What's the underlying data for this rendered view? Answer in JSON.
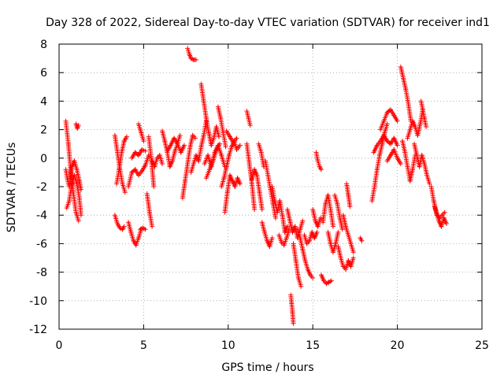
{
  "chart_data": {
    "type": "scatter",
    "title": "Day 328 of 2022, Sidereal Day-to-day VTEC variation (SDTVAR) for receiver ind1",
    "xlabel": "GPS time / hours",
    "ylabel": "SDTVAR / TECUs",
    "xlim": [
      0,
      25
    ],
    "ylim": [
      -12,
      8
    ],
    "xticks": [
      0,
      5,
      10,
      15,
      20,
      25
    ],
    "yticks": [
      -12,
      -10,
      -8,
      -6,
      -4,
      -2,
      0,
      2,
      4,
      6,
      8
    ],
    "xtick_labels": [
      "0",
      "5",
      "10",
      "15",
      "20",
      "25"
    ],
    "ytick_labels": [
      "-12",
      "-10",
      "-8",
      "-6",
      "-4",
      "-2",
      "0",
      "2",
      "4",
      "6",
      "8"
    ],
    "grid": true,
    "marker": "+",
    "marker_color": "#ff0000",
    "series": [
      {
        "name": "SDTVAR",
        "color": "#ff0000",
        "segments": [
          {
            "x": [
              0.4,
              0.55,
              0.7,
              0.85,
              1.0,
              1.15
            ],
            "y": [
              2.6,
              1.0,
              -1.0,
              -2.5,
              -3.8,
              -4.4
            ]
          },
          {
            "x": [
              0.45,
              0.6,
              0.75,
              0.9,
              1.05,
              1.2,
              1.3
            ],
            "y": [
              -3.5,
              -3.0,
              -1.8,
              -1.2,
              -1.8,
              -2.8,
              -4.0
            ]
          },
          {
            "x": [
              0.4,
              0.5,
              0.6,
              0.75,
              0.9,
              1.05,
              1.2,
              1.3
            ],
            "y": [
              -0.8,
              -1.5,
              -2.0,
              -0.6,
              -0.2,
              -0.8,
              -1.6,
              -2.2
            ]
          },
          {
            "x": [
              1.0,
              1.08,
              1.15
            ],
            "y": [
              2.4,
              2.1,
              2.3
            ]
          },
          {
            "x": [
              3.3,
              3.45,
              3.6,
              3.75,
              3.9
            ],
            "y": [
              1.6,
              0.4,
              -0.8,
              -1.8,
              -2.4
            ]
          },
          {
            "x": [
              3.3,
              3.45,
              3.6,
              3.75,
              3.85
            ],
            "y": [
              -4.0,
              -4.6,
              -4.9,
              -5.0,
              -4.8
            ]
          },
          {
            "x": [
              3.4,
              3.55,
              3.7,
              3.85,
              4.0
            ],
            "y": [
              -1.8,
              -0.8,
              0.4,
              1.2,
              1.5
            ]
          },
          {
            "x": [
              4.1,
              4.25,
              4.4,
              4.55,
              4.7,
              4.85
            ],
            "y": [
              -4.5,
              -5.2,
              -5.8,
              -6.1,
              -5.6,
              -5.0
            ]
          },
          {
            "x": [
              4.8,
              4.95,
              5.1
            ],
            "y": [
              -5.0,
              -4.9,
              -5.0
            ]
          },
          {
            "x": [
              4.1,
              4.3,
              4.5,
              4.7,
              4.9,
              5.1,
              5.3
            ],
            "y": [
              -2.0,
              -1.0,
              -0.8,
              -1.2,
              -0.9,
              -0.5,
              0.2
            ]
          },
          {
            "x": [
              4.3,
              4.5,
              4.7,
              4.9,
              5.1
            ],
            "y": [
              0.0,
              0.4,
              0.2,
              0.6,
              0.5
            ]
          },
          {
            "x": [
              4.7,
              4.85,
              5.0
            ],
            "y": [
              2.4,
              1.8,
              1.2
            ]
          },
          {
            "x": [
              5.2,
              5.35,
              5.5
            ],
            "y": [
              -2.5,
              -3.8,
              -4.8
            ]
          },
          {
            "x": [
              5.3,
              5.45,
              5.6
            ],
            "y": [
              1.5,
              0.0,
              -2.0
            ]
          },
          {
            "x": [
              5.5,
              5.65,
              5.8,
              5.95,
              6.1
            ],
            "y": [
              -0.2,
              -0.6,
              0.0,
              0.2,
              -0.4
            ]
          },
          {
            "x": [
              6.1,
              6.25,
              6.4,
              6.55,
              6.7,
              6.85,
              7.0,
              7.15
            ],
            "y": [
              1.9,
              1.2,
              0.4,
              -0.6,
              -0.2,
              0.5,
              1.0,
              1.6
            ]
          },
          {
            "x": [
              6.4,
              6.6,
              6.8,
              7.0,
              7.2,
              7.4
            ],
            "y": [
              0.5,
              0.9,
              1.4,
              1.0,
              0.4,
              0.9
            ]
          },
          {
            "x": [
              7.3,
              7.45,
              7.6,
              7.75,
              7.9,
              8.05
            ],
            "y": [
              -2.8,
              -1.6,
              -0.4,
              0.8,
              1.6,
              1.4
            ]
          },
          {
            "x": [
              7.6,
              7.7,
              7.8,
              7.95,
              8.1
            ],
            "y": [
              7.7,
              7.3,
              7.0,
              6.9,
              6.9
            ]
          },
          {
            "x": [
              7.8,
              7.95,
              8.1,
              8.25,
              8.4,
              8.55,
              8.7
            ],
            "y": [
              -1.0,
              -0.4,
              0.2,
              -0.2,
              0.8,
              1.6,
              2.6
            ]
          },
          {
            "x": [
              8.4,
              8.55,
              8.7,
              8.85,
              9.0,
              9.15,
              9.3,
              9.45
            ],
            "y": [
              5.2,
              4.0,
              2.8,
              1.8,
              0.9,
              1.4,
              2.2,
              1.5
            ]
          },
          {
            "x": [
              8.6,
              8.8,
              9.0,
              9.2,
              9.4,
              9.6,
              9.8
            ],
            "y": [
              -0.4,
              0.2,
              -0.6,
              0.4,
              0.9,
              0.2,
              -0.6
            ]
          },
          {
            "x": [
              8.7,
              8.9,
              9.1,
              9.3,
              9.5
            ],
            "y": [
              -1.4,
              -0.8,
              -0.2,
              0.6,
              1.0
            ]
          },
          {
            "x": [
              9.4,
              9.55,
              9.7,
              9.85
            ],
            "y": [
              3.6,
              2.8,
              1.8,
              0.8
            ]
          },
          {
            "x": [
              9.6,
              9.75,
              9.9,
              10.05,
              10.2,
              10.35,
              10.5,
              10.7
            ],
            "y": [
              -2.0,
              -1.4,
              -0.6,
              0.2,
              0.8,
              1.2,
              0.6,
              0.9
            ]
          },
          {
            "x": [
              9.8,
              9.95,
              10.1,
              10.25,
              10.4,
              10.55,
              10.7
            ],
            "y": [
              -3.8,
              -2.4,
              -1.2,
              -1.6,
              -2.0,
              -1.4,
              -1.8
            ]
          },
          {
            "x": [
              9.9,
              10.1,
              10.3,
              10.5
            ],
            "y": [
              1.9,
              1.5,
              1.1,
              1.4
            ]
          },
          {
            "x": [
              11.1,
              11.2,
              11.3
            ],
            "y": [
              3.3,
              2.8,
              2.3
            ]
          },
          {
            "x": [
              11.1,
              11.25,
              11.4,
              11.55
            ],
            "y": [
              1.0,
              -0.4,
              -1.8,
              -3.6
            ]
          },
          {
            "x": [
              11.4,
              11.55,
              11.7,
              11.85,
              12.0
            ],
            "y": [
              -1.5,
              -0.8,
              -1.2,
              -2.4,
              -3.6
            ]
          },
          {
            "x": [
              11.8,
              11.95,
              12.1
            ],
            "y": [
              1.0,
              0.4,
              -0.6
            ]
          },
          {
            "x": [
              12.0,
              12.15,
              12.3,
              12.45,
              12.6
            ],
            "y": [
              -4.5,
              -5.2,
              -5.8,
              -6.2,
              -5.6
            ]
          },
          {
            "x": [
              12.2,
              12.35,
              12.5,
              12.65,
              12.8
            ],
            "y": [
              -0.2,
              -1.2,
              -2.2,
              -3.2,
              -4.2
            ]
          },
          {
            "x": [
              12.6,
              12.75,
              12.9,
              13.05,
              13.2,
              13.35,
              13.5
            ],
            "y": [
              -2.0,
              -3.0,
              -3.8,
              -3.0,
              -4.0,
              -5.2,
              -4.8
            ]
          },
          {
            "x": [
              13.0,
              13.15,
              13.3,
              13.45,
              13.6
            ],
            "y": [
              -5.4,
              -5.9,
              -6.1,
              -5.6,
              -5.0
            ]
          },
          {
            "x": [
              13.5,
              13.65,
              13.8,
              13.95,
              14.1,
              14.25,
              14.4
            ],
            "y": [
              -3.6,
              -4.4,
              -5.2,
              -4.8,
              -5.6,
              -5.0,
              -4.4
            ]
          },
          {
            "x": [
              13.7,
              13.75,
              13.8,
              13.85
            ],
            "y": [
              -9.6,
              -10.2,
              -10.8,
              -11.6
            ]
          },
          {
            "x": [
              13.85,
              14.0,
              14.15,
              14.3
            ],
            "y": [
              -6.0,
              -7.2,
              -8.4,
              -9.0
            ]
          },
          {
            "x": [
              14.1,
              14.25,
              14.4,
              14.55,
              14.7,
              14.85,
              15.0
            ],
            "y": [
              -5.0,
              -5.6,
              -6.4,
              -7.2,
              -7.8,
              -8.2,
              -8.4
            ]
          },
          {
            "x": [
              14.5,
              14.65,
              14.8,
              14.95,
              15.1,
              15.25
            ],
            "y": [
              -5.4,
              -6.0,
              -5.8,
              -5.2,
              -5.6,
              -5.2
            ]
          },
          {
            "x": [
              15.0,
              15.15,
              15.3,
              15.45
            ],
            "y": [
              -3.6,
              -4.4,
              -4.8,
              -4.2
            ]
          },
          {
            "x": [
              15.2,
              15.3,
              15.4,
              15.5
            ],
            "y": [
              0.4,
              -0.2,
              -0.6,
              -0.8
            ]
          },
          {
            "x": [
              15.5,
              15.65,
              15.8,
              15.95,
              16.1
            ],
            "y": [
              -8.2,
              -8.6,
              -8.8,
              -8.7,
              -8.6
            ]
          },
          {
            "x": [
              15.6,
              15.75,
              15.9,
              16.05,
              16.2
            ],
            "y": [
              -4.5,
              -3.2,
              -2.6,
              -3.6,
              -4.8
            ]
          },
          {
            "x": [
              15.9,
              16.05,
              16.2,
              16.35,
              16.5
            ],
            "y": [
              -5.2,
              -6.0,
              -6.6,
              -6.0,
              -5.2
            ]
          },
          {
            "x": [
              16.3,
              16.45,
              16.6,
              16.75
            ],
            "y": [
              -2.6,
              -3.2,
              -4.2,
              -5.0
            ]
          },
          {
            "x": [
              16.5,
              16.65,
              16.8,
              16.95,
              17.1,
              17.25,
              17.4
            ],
            "y": [
              -6.2,
              -7.0,
              -7.6,
              -7.8,
              -7.2,
              -7.6,
              -7.0
            ]
          },
          {
            "x": [
              16.8,
              16.95,
              17.1,
              17.25,
              17.4
            ],
            "y": [
              -4.0,
              -4.8,
              -5.4,
              -6.0,
              -6.6
            ]
          },
          {
            "x": [
              17.0,
              17.1,
              17.2
            ],
            "y": [
              -1.8,
              -2.6,
              -3.4
            ]
          },
          {
            "x": [
              17.8,
              17.9
            ],
            "y": [
              -5.6,
              -5.8
            ]
          },
          {
            "x": [
              18.5,
              18.65,
              18.8,
              18.95,
              19.1,
              19.25,
              19.4
            ],
            "y": [
              -3.0,
              -2.0,
              -0.8,
              0.2,
              1.0,
              1.8,
              2.4
            ]
          },
          {
            "x": [
              18.6,
              18.8,
              19.0,
              19.2,
              19.4,
              19.6,
              19.8,
              20.0
            ],
            "y": [
              0.4,
              0.9,
              1.2,
              1.6,
              1.2,
              1.0,
              1.4,
              0.9
            ]
          },
          {
            "x": [
              19.0,
              19.2,
              19.4,
              19.6,
              19.8,
              20.0
            ],
            "y": [
              2.0,
              2.6,
              3.2,
              3.4,
              3.0,
              2.6
            ]
          },
          {
            "x": [
              19.4,
              19.6,
              19.8,
              20.0,
              20.2
            ],
            "y": [
              -0.2,
              0.2,
              0.6,
              0.0,
              -0.4
            ]
          },
          {
            "x": [
              20.2,
              20.35,
              20.5,
              20.65,
              20.8
            ],
            "y": [
              6.4,
              5.6,
              4.8,
              3.8,
              2.6
            ]
          },
          {
            "x": [
              20.3,
              20.45,
              20.6,
              20.75,
              20.9,
              21.05
            ],
            "y": [
              1.2,
              0.4,
              -0.6,
              -1.6,
              -0.8,
              0.2
            ]
          },
          {
            "x": [
              20.6,
              20.75,
              20.9,
              21.05,
              21.2,
              21.35,
              21.5
            ],
            "y": [
              1.4,
              2.0,
              2.6,
              2.2,
              1.6,
              2.4,
              3.4
            ]
          },
          {
            "x": [
              21.0,
              21.15,
              21.3,
              21.45,
              21.6,
              21.75,
              21.9
            ],
            "y": [
              1.0,
              0.2,
              -0.6,
              0.2,
              -0.4,
              -1.2,
              -1.8
            ]
          },
          {
            "x": [
              21.4,
              21.5,
              21.6,
              21.7
            ],
            "y": [
              4.0,
              3.4,
              2.8,
              2.2
            ]
          },
          {
            "x": [
              22.0,
              22.15,
              22.3,
              22.45,
              22.6,
              22.75,
              22.9
            ],
            "y": [
              -2.0,
              -3.0,
              -3.8,
              -4.4,
              -4.8,
              -4.2,
              -4.6
            ]
          },
          {
            "x": [
              22.2,
              22.35,
              22.5,
              22.65,
              22.8
            ],
            "y": [
              -3.4,
              -4.0,
              -4.2,
              -4.0,
              -3.8
            ]
          }
        ]
      }
    ]
  }
}
